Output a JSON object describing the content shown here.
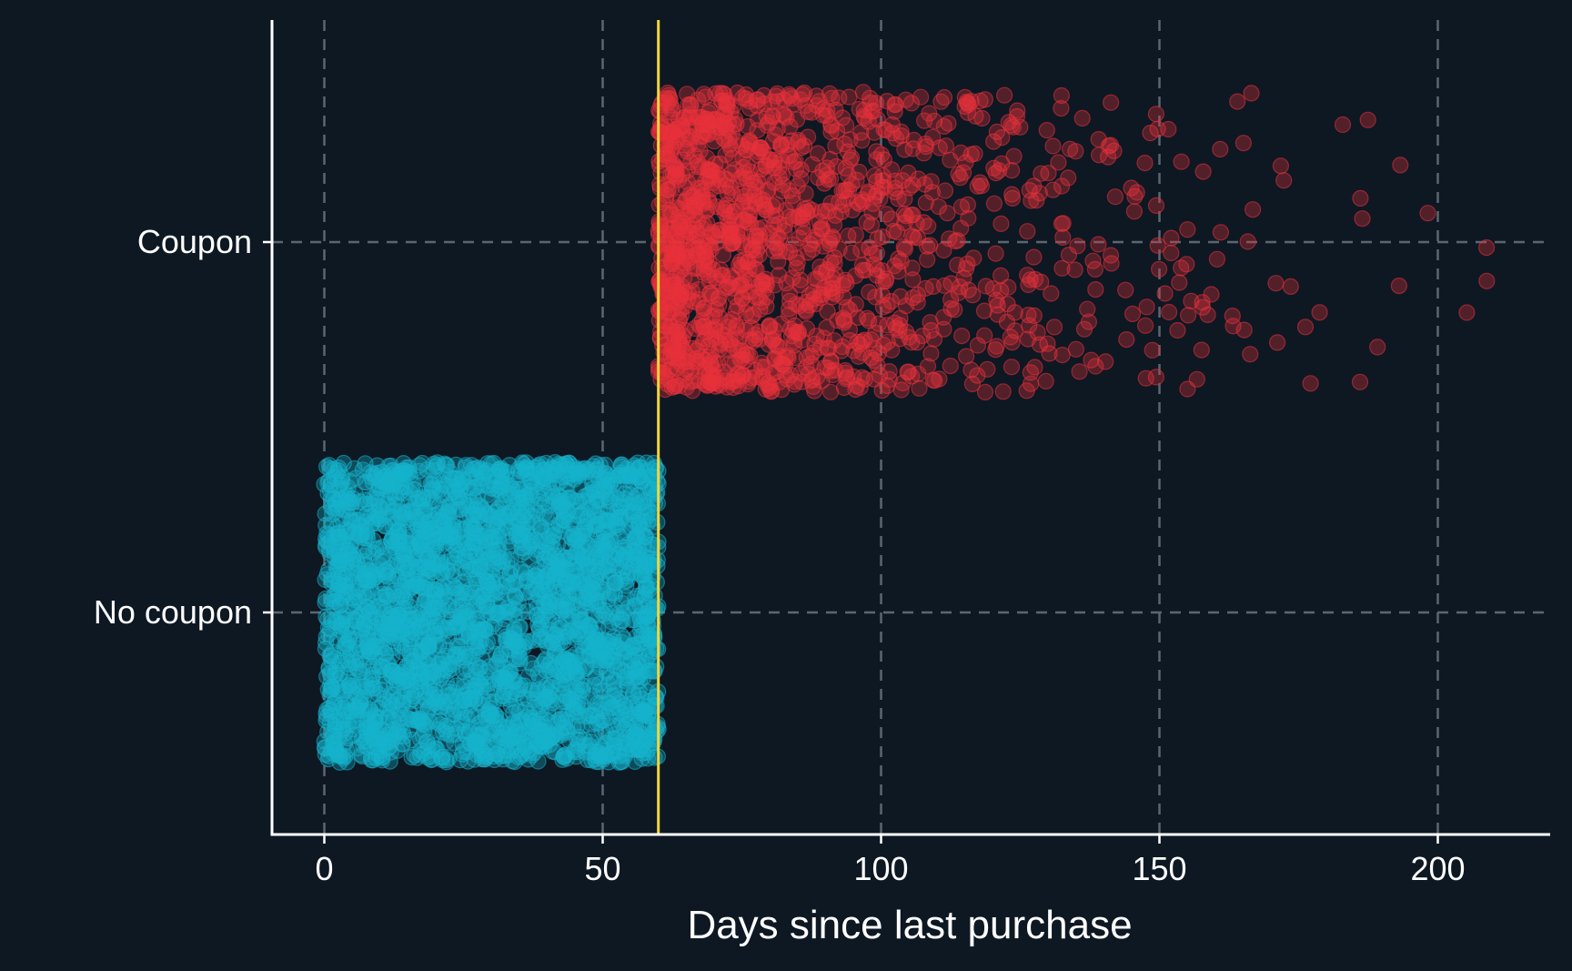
{
  "chart_data": {
    "type": "scatter",
    "title": "",
    "xlabel": "Days since last purchase",
    "ylabel": "",
    "xlim": [
      -9.5,
      220
    ],
    "x_ticks": [
      0,
      50,
      100,
      150,
      200
    ],
    "y_categories": [
      "Coupon",
      "No coupon"
    ],
    "grid": true,
    "threshold_line": {
      "x": 60,
      "color": "#f5d63d"
    },
    "series": [
      {
        "category": "Coupon",
        "color": "#e8323c",
        "x_min": 60,
        "x_max": 210,
        "approx_count": 1500
      },
      {
        "category": "No coupon",
        "color": "#17b3cc",
        "x_min": 0,
        "x_max": 60,
        "approx_count": 3000
      }
    ]
  }
}
